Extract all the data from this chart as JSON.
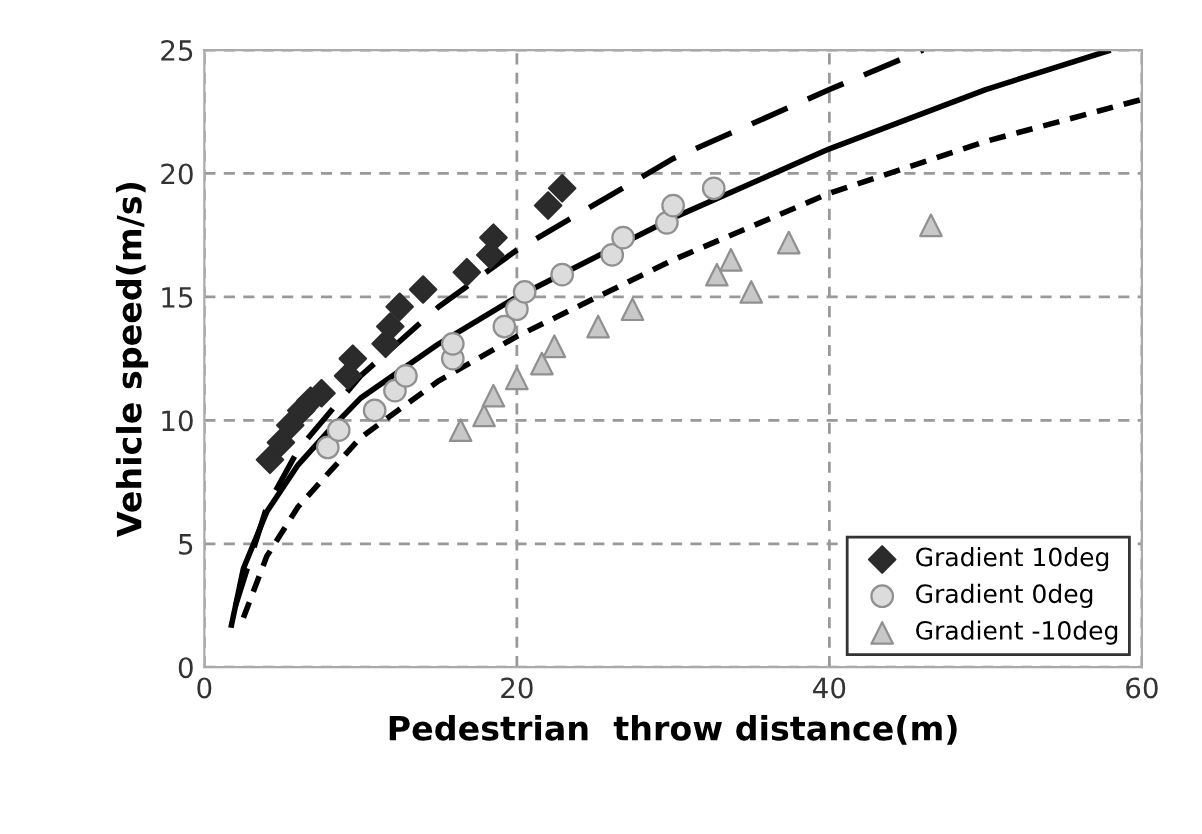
{
  "chart_data": {
    "type": "scatter",
    "xlabel": "Pedestrian  throw distance(m)",
    "ylabel": "Vehicle speed(m/s)",
    "xlim": [
      0,
      60
    ],
    "ylim": [
      0,
      25
    ],
    "xticks": [
      0,
      20,
      40,
      60
    ],
    "yticks": [
      0,
      5,
      10,
      15,
      20,
      25
    ],
    "grid": true,
    "legend": "bottom right",
    "series": [
      {
        "name": "Gradient 10deg",
        "marker": "diamond",
        "color": "#2b2b2b",
        "x": [
          4.2,
          4.9,
          5.5,
          6.2,
          6.8,
          7.5,
          9.2,
          9.5,
          11.6,
          11.9,
          12.5,
          14.0,
          16.8,
          18.3,
          18.5,
          22.0,
          22.9
        ],
        "values": [
          8.4,
          9.1,
          9.8,
          10.4,
          10.8,
          11.1,
          11.8,
          12.5,
          13.1,
          13.8,
          14.6,
          15.3,
          16.0,
          16.7,
          17.4,
          18.7,
          19.4
        ]
      },
      {
        "name": "Gradient 0deg",
        "marker": "circle",
        "color": "#dcdcdc",
        "x": [
          7.9,
          8.6,
          10.9,
          12.2,
          12.9,
          15.9,
          15.9,
          19.2,
          20.0,
          20.5,
          22.9,
          26.1,
          26.8,
          29.6,
          30.0,
          32.6
        ],
        "values": [
          8.9,
          9.6,
          10.4,
          11.2,
          11.8,
          12.5,
          13.1,
          13.8,
          14.5,
          15.2,
          15.9,
          16.7,
          17.4,
          18.0,
          18.7,
          19.4
        ]
      },
      {
        "name": "Gradient -10deg",
        "marker": "triangle",
        "color": "#c8c8c8",
        "x": [
          16.4,
          17.9,
          18.5,
          20.0,
          21.6,
          22.4,
          25.2,
          27.4,
          32.8,
          33.7,
          35.0,
          37.4,
          46.5
        ],
        "values": [
          9.6,
          10.2,
          11.0,
          11.7,
          12.3,
          13.0,
          13.8,
          14.5,
          15.9,
          16.5,
          15.2,
          17.2,
          17.9
        ]
      },
      {
        "type": "line",
        "line_style": "dashed",
        "color": "#000000",
        "x": [
          2,
          3,
          4,
          6,
          10,
          15,
          20,
          30,
          40,
          46
        ],
        "values": [
          2.5,
          4.5,
          6.5,
          8.8,
          11.8,
          14.6,
          16.9,
          20.6,
          23.4,
          25
        ]
      },
      {
        "type": "line",
        "line_style": "solid",
        "color": "#000000",
        "x": [
          1.7,
          2.5,
          4,
          6,
          8,
          10,
          15,
          20,
          30,
          40,
          50,
          58
        ],
        "values": [
          1.6,
          4,
          6.3,
          8.2,
          9.6,
          10.9,
          13.1,
          15,
          18.2,
          21,
          23.4,
          25
        ]
      },
      {
        "type": "line",
        "line_style": "dotted",
        "color": "#000000",
        "x": [
          2.5,
          4,
          6,
          10,
          15,
          20,
          30,
          40,
          50,
          60
        ],
        "values": [
          2,
          4.5,
          6.5,
          9.3,
          11.6,
          13.4,
          16.5,
          19.2,
          21.3,
          23
        ]
      }
    ]
  }
}
